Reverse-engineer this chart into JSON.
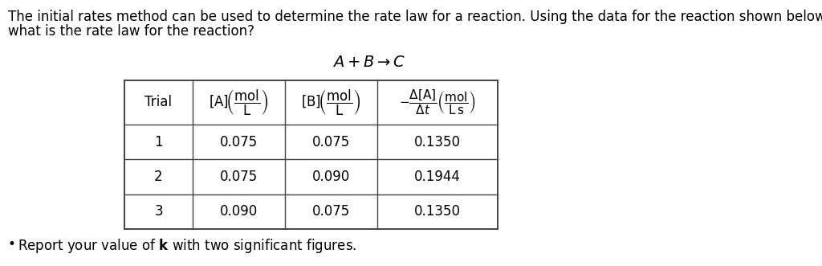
{
  "paragraph_line1": "The initial rates method can be used to determine the rate law for a reaction. Using the data for the reaction shown below,",
  "paragraph_line2": "what is the rate law for the reaction?",
  "rows": [
    [
      "1",
      "0.075",
      "0.075",
      "0.1350"
    ],
    [
      "2",
      "0.075",
      "0.090",
      "0.1944"
    ],
    [
      "3",
      "0.090",
      "0.075",
      "0.1350"
    ]
  ],
  "bullet_text_before_k": "Report your value of ",
  "bullet_text_after_k": " with two significant figures.",
  "bg_color": "#ffffff",
  "text_color": "#000000",
  "line_color": "#444444",
  "para_fontsize": 12.0,
  "eq_fontsize": 14.0,
  "table_fontsize": 12.0,
  "bullet_fontsize": 12.0,
  "fig_width": 10.24,
  "fig_height": 3.31,
  "dpi": 100
}
